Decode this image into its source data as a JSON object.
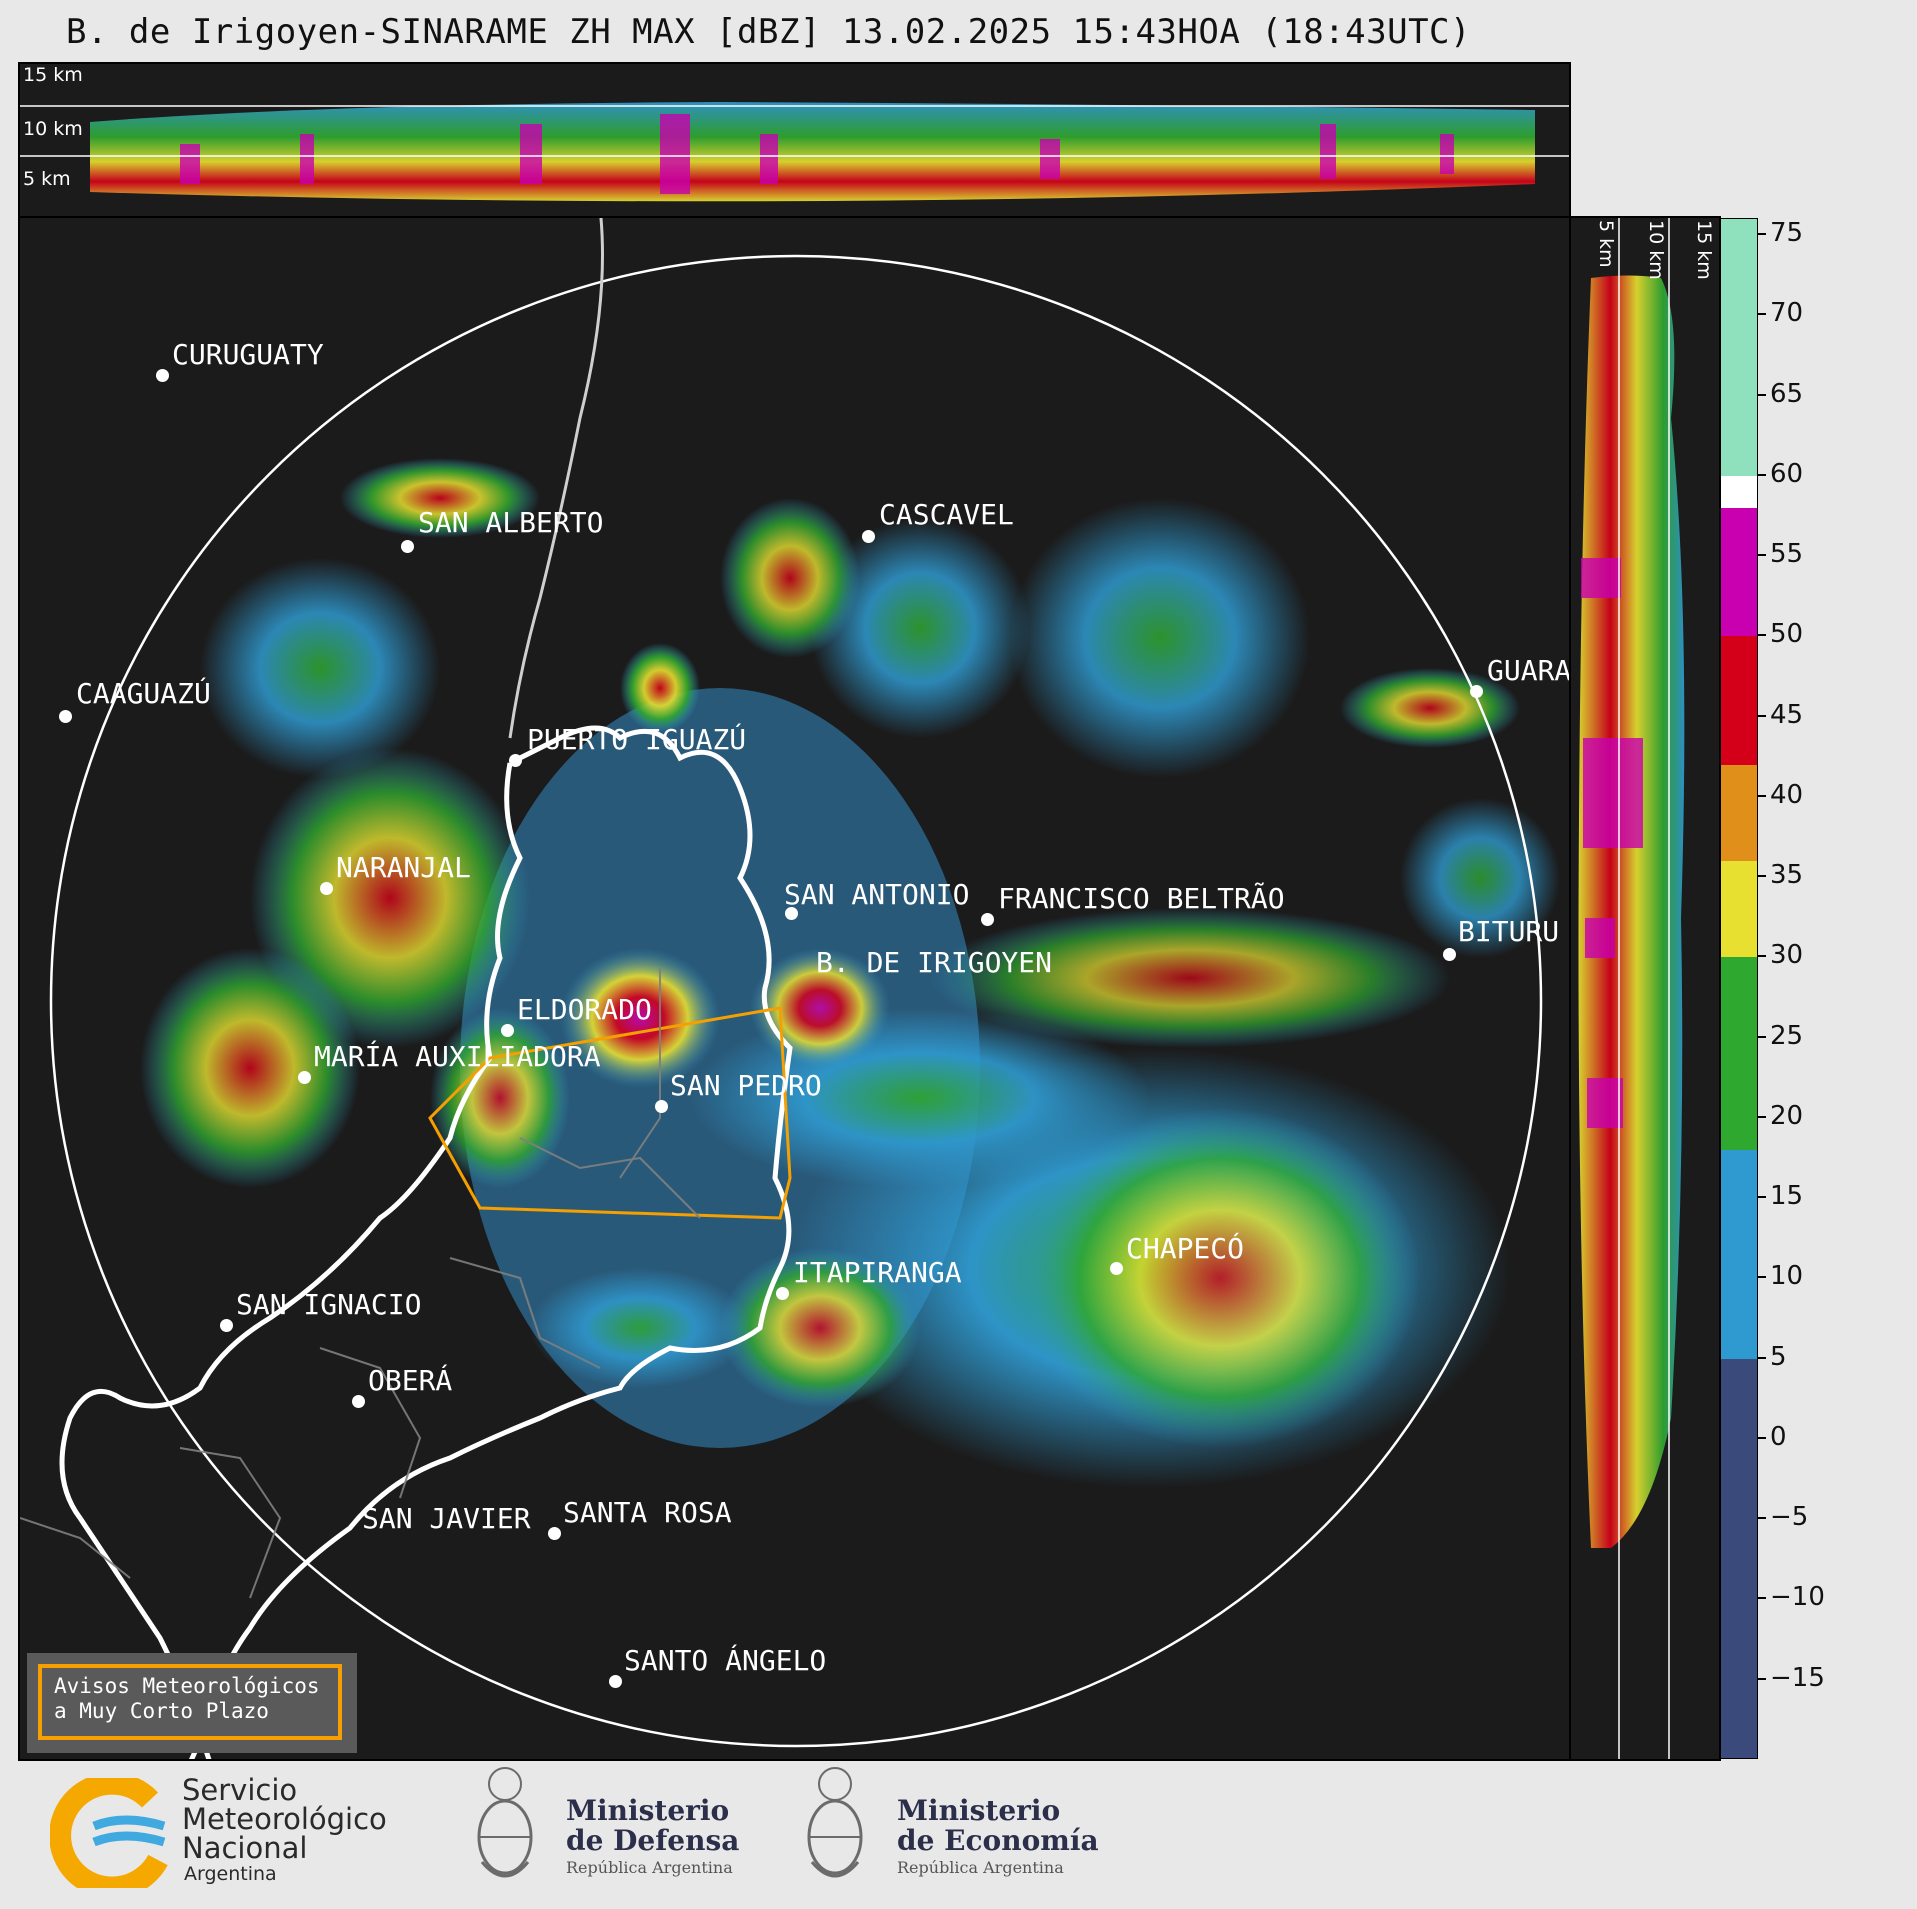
{
  "title": "B. de Irigoyen-SINARAME ZH MAX [dBZ] 13.02.2025 15:43HOA (18:43UTC)",
  "top_panel": {
    "heights": [
      "15 km",
      "10 km",
      "5 km"
    ]
  },
  "side_panel": {
    "heights": [
      "5 km",
      "10 km",
      "15 km"
    ]
  },
  "cities": [
    {
      "name": "CURUGUATY"
    },
    {
      "name": "SAN ALBERTO"
    },
    {
      "name": "CASCAVEL"
    },
    {
      "name": "CAAGUAZÚ"
    },
    {
      "name": "GUARA"
    },
    {
      "name": "PUERTO IGUAZÚ"
    },
    {
      "name": "NARANJAL"
    },
    {
      "name": "SAN ANTONIO"
    },
    {
      "name": "FRANCISCO BELTRÃO"
    },
    {
      "name": "BITURU"
    },
    {
      "name": "B. DE IRIGOYEN"
    },
    {
      "name": "ELDORADO"
    },
    {
      "name": "MARÍA AUXILIADORA"
    },
    {
      "name": "SAN PEDRO"
    },
    {
      "name": "CHAPECÓ"
    },
    {
      "name": "ITAPIRANGA"
    },
    {
      "name": "SAN IGNACIO"
    },
    {
      "name": "OBERÁ"
    },
    {
      "name": "SAN JAVIER"
    },
    {
      "name": "SANTA ROSA"
    },
    {
      "name": "SANTO ÁNGELO"
    }
  ],
  "colorbar": {
    "unit": "dBZ",
    "range": [
      -20,
      76
    ],
    "ticks": [
      "75",
      "70",
      "65",
      "60",
      "55",
      "50",
      "45",
      "40",
      "35",
      "30",
      "25",
      "20",
      "15",
      "10",
      "5",
      "0",
      "−5",
      "−10",
      "−15"
    ],
    "bands": [
      {
        "from": 60,
        "to": 76,
        "color": "#8fe0bd"
      },
      {
        "from": 58,
        "to": 60,
        "color": "#ffffff"
      },
      {
        "from": 50,
        "to": 58,
        "color": "#c800b0"
      },
      {
        "from": 42,
        "to": 50,
        "color": "#d4001a"
      },
      {
        "from": 36,
        "to": 42,
        "color": "#e0901a"
      },
      {
        "from": 30,
        "to": 36,
        "color": "#e8e030"
      },
      {
        "from": 18,
        "to": 30,
        "color": "#2fa82f"
      },
      {
        "from": 5,
        "to": 18,
        "color": "#2f9ad0"
      },
      {
        "from": -20,
        "to": 5,
        "color": "#3a4a7a"
      }
    ]
  },
  "legend": {
    "line1": "Avisos Meteorológicos",
    "line2": "a Muy Corto Plazo"
  },
  "logos": {
    "smn": {
      "line1": "Servicio",
      "line2": "Meteorológico",
      "line3": "Nacional",
      "line4": "Argentina"
    },
    "defensa": {
      "line1": "Ministerio",
      "line2": "de Defensa",
      "line3": "República Argentina"
    },
    "economia": {
      "line1": "Ministerio",
      "line2": "de Economía",
      "line3": "República Argentina"
    }
  }
}
